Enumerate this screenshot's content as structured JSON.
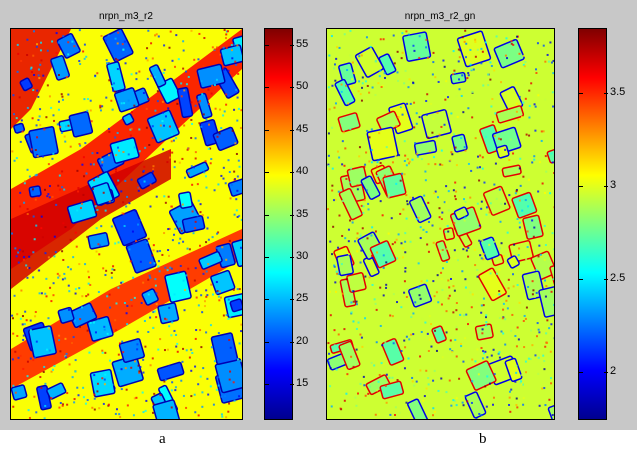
{
  "chart_data": [
    {
      "type": "heatmap",
      "title": "nrpn_m3_r2",
      "caption": "a",
      "colormap": "jet",
      "colorbar": {
        "ticks": [
          15,
          20,
          25,
          30,
          35,
          40,
          45,
          50,
          55
        ],
        "range": [
          11,
          57
        ]
      }
    },
    {
      "type": "heatmap",
      "title": "nrpn_m3_r2_gn",
      "caption": "b",
      "colormap": "jet",
      "colorbar": {
        "ticks": [
          2,
          2.5,
          3,
          3.5
        ],
        "range": [
          1.75,
          3.85
        ]
      }
    }
  ]
}
